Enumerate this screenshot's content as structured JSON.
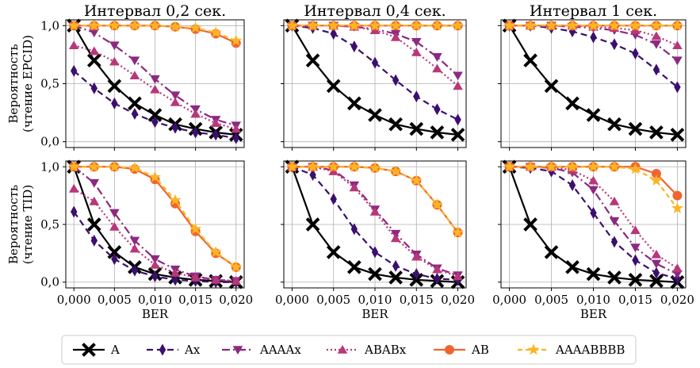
{
  "chart_data": {
    "type": "line",
    "x": [
      0.0,
      0.0025,
      0.005,
      0.0075,
      0.01,
      0.0125,
      0.015,
      0.0175,
      0.02
    ],
    "xticks": [
      "0,000",
      "0,005",
      "0,010",
      "0,015",
      "0,020"
    ],
    "xtick_values": [
      0.0,
      0.005,
      0.01,
      0.015,
      0.02
    ],
    "xlabel": "BER",
    "yticks": [
      "0,0",
      "0,5",
      "1,0"
    ],
    "ytick_values": [
      0,
      0.5,
      1.0
    ],
    "xlim": [
      -0.001,
      0.021
    ],
    "ylim": [
      -0.05,
      1.05
    ],
    "grid": true,
    "legend_position": "bottom",
    "row_ylabels": [
      [
        "Вероятность",
        "(чтение EPCID)"
      ],
      [
        "Вероятность",
        "(чтение TID)"
      ]
    ],
    "series_styles": [
      {
        "name": "A",
        "color": "#000000",
        "marker": "x",
        "dash": ""
      },
      {
        "name": "Ax",
        "color": "#3b0f6f",
        "marker": "d",
        "dash": "8,5"
      },
      {
        "name": "AAAAx",
        "color": "#8c2981",
        "marker": "v",
        "dash": "10,4,2,4"
      },
      {
        "name": "ABABx",
        "color": "#b73779",
        "marker": "^",
        "dash": "2,3"
      },
      {
        "name": "AB",
        "color": "#f0652f",
        "marker": "o",
        "dash": ""
      },
      {
        "name": "AAAABBBB",
        "color": "#fbb524",
        "marker": "*",
        "dash": "6,4"
      }
    ],
    "panels": [
      {
        "title": "Интервал 0,2 сек.",
        "series": [
          {
            "name": "A",
            "values": [
              1.0,
              0.7,
              0.48,
              0.33,
              0.23,
              0.15,
              0.11,
              0.08,
              0.06
            ]
          },
          {
            "name": "Ax",
            "values": [
              0.61,
              0.46,
              0.33,
              0.24,
              0.17,
              0.12,
              0.08,
              0.06,
              0.03
            ]
          },
          {
            "name": "AAAAx",
            "values": [
              1.0,
              0.94,
              0.83,
              0.7,
              0.54,
              0.4,
              0.28,
              0.19,
              0.14
            ]
          },
          {
            "name": "ABABx",
            "values": [
              0.83,
              0.78,
              0.69,
              0.57,
              0.45,
              0.34,
              0.24,
              0.16,
              0.11
            ]
          },
          {
            "name": "AB",
            "values": [
              1.0,
              1.0,
              1.0,
              1.0,
              1.0,
              0.99,
              0.97,
              0.93,
              0.85
            ]
          },
          {
            "name": "AAAABBBB",
            "values": [
              1.0,
              1.0,
              1.0,
              1.0,
              1.0,
              0.99,
              0.98,
              0.94,
              0.87
            ]
          }
        ]
      },
      {
        "title": "Интервал 0,4 сек.",
        "series": [
          {
            "name": "A",
            "values": [
              1.0,
              0.7,
              0.48,
              0.33,
              0.23,
              0.15,
              0.11,
              0.08,
              0.06
            ]
          },
          {
            "name": "Ax",
            "values": [
              1.0,
              0.98,
              0.93,
              0.82,
              0.68,
              0.53,
              0.39,
              0.28,
              0.19
            ]
          },
          {
            "name": "AAAAx",
            "values": [
              1.0,
              1.0,
              1.0,
              0.99,
              0.97,
              0.93,
              0.86,
              0.73,
              0.57
            ]
          },
          {
            "name": "ABABx",
            "values": [
              1.0,
              1.0,
              1.0,
              0.99,
              0.96,
              0.9,
              0.77,
              0.63,
              0.48
            ]
          },
          {
            "name": "AB",
            "values": [
              1.0,
              1.0,
              1.0,
              1.0,
              1.0,
              1.0,
              1.0,
              1.0,
              1.0
            ]
          },
          {
            "name": "AAAABBBB",
            "values": [
              1.0,
              1.0,
              1.0,
              1.0,
              1.0,
              1.0,
              1.0,
              1.0,
              1.0
            ]
          }
        ]
      },
      {
        "title": "Интервал 1 сек.",
        "series": [
          {
            "name": "A",
            "values": [
              1.0,
              0.7,
              0.48,
              0.33,
              0.23,
              0.15,
              0.11,
              0.08,
              0.06
            ]
          },
          {
            "name": "Ax",
            "values": [
              1.0,
              1.0,
              0.98,
              0.95,
              0.9,
              0.84,
              0.76,
              0.62,
              0.47
            ]
          },
          {
            "name": "AAAAx",
            "values": [
              1.0,
              1.0,
              1.0,
              0.99,
              0.98,
              0.96,
              0.92,
              0.84,
              0.7
            ]
          },
          {
            "name": "ABABx",
            "values": [
              1.0,
              1.0,
              1.0,
              1.0,
              0.99,
              0.98,
              0.96,
              0.91,
              0.83
            ]
          },
          {
            "name": "AB",
            "values": [
              1.0,
              1.0,
              1.0,
              1.0,
              1.0,
              1.0,
              1.0,
              1.0,
              1.0
            ]
          },
          {
            "name": "AAAABBBB",
            "values": [
              1.0,
              1.0,
              1.0,
              1.0,
              1.0,
              1.0,
              1.0,
              1.0,
              1.0
            ]
          }
        ]
      },
      {
        "title": "",
        "series": [
          {
            "name": "A",
            "values": [
              1.0,
              0.5,
              0.26,
              0.13,
              0.07,
              0.04,
              0.02,
              0.01,
              0.0
            ]
          },
          {
            "name": "Ax",
            "values": [
              0.61,
              0.36,
              0.2,
              0.1,
              0.05,
              0.02,
              0.01,
              0.0,
              0.0
            ]
          },
          {
            "name": "AAAAx",
            "values": [
              1.0,
              0.86,
              0.6,
              0.36,
              0.2,
              0.11,
              0.05,
              0.02,
              0.01
            ]
          },
          {
            "name": "ABABx",
            "values": [
              0.81,
              0.7,
              0.48,
              0.29,
              0.15,
              0.08,
              0.04,
              0.02,
              0.01
            ]
          },
          {
            "name": "AB",
            "values": [
              1.0,
              1.0,
              1.0,
              0.98,
              0.89,
              0.68,
              0.44,
              0.25,
              0.13
            ]
          },
          {
            "name": "AAAABBBB",
            "values": [
              1.0,
              1.0,
              1.0,
              0.99,
              0.91,
              0.71,
              0.46,
              0.26,
              0.13
            ]
          }
        ]
      },
      {
        "title": "",
        "series": [
          {
            "name": "A",
            "values": [
              1.0,
              0.5,
              0.26,
              0.13,
              0.07,
              0.04,
              0.02,
              0.01,
              0.0
            ]
          },
          {
            "name": "Ax",
            "values": [
              1.0,
              0.93,
              0.72,
              0.46,
              0.26,
              0.14,
              0.07,
              0.03,
              0.02
            ]
          },
          {
            "name": "AAAAx",
            "values": [
              1.0,
              1.0,
              0.97,
              0.84,
              0.63,
              0.42,
              0.24,
              0.12,
              0.06
            ]
          },
          {
            "name": "ABABx",
            "values": [
              1.0,
              1.0,
              0.96,
              0.82,
              0.61,
              0.38,
              0.22,
              0.11,
              0.05
            ]
          },
          {
            "name": "AB",
            "values": [
              1.0,
              1.0,
              1.0,
              1.0,
              0.99,
              0.96,
              0.88,
              0.67,
              0.43
            ]
          },
          {
            "name": "AAAABBBB",
            "values": [
              1.0,
              1.0,
              1.0,
              1.0,
              0.99,
              0.96,
              0.88,
              0.67,
              0.43
            ]
          }
        ]
      },
      {
        "title": "",
        "series": [
          {
            "name": "A",
            "values": [
              1.0,
              0.5,
              0.26,
              0.13,
              0.07,
              0.04,
              0.02,
              0.01,
              0.0
            ]
          },
          {
            "name": "Ax",
            "values": [
              1.0,
              0.99,
              0.96,
              0.84,
              0.6,
              0.35,
              0.19,
              0.08,
              0.03
            ]
          },
          {
            "name": "AAAAx",
            "values": [
              1.0,
              1.0,
              0.99,
              0.95,
              0.8,
              0.53,
              0.3,
              0.16,
              0.07
            ]
          },
          {
            "name": "ABABx",
            "values": [
              1.0,
              1.0,
              1.0,
              0.97,
              0.88,
              0.7,
              0.45,
              0.24,
              0.12
            ]
          },
          {
            "name": "AB",
            "values": [
              1.0,
              1.0,
              1.0,
              1.0,
              1.0,
              1.0,
              1.0,
              0.94,
              0.75
            ]
          },
          {
            "name": "AAAABBBB",
            "values": [
              1.0,
              1.0,
              1.0,
              1.0,
              1.0,
              1.0,
              0.98,
              0.88,
              0.64
            ]
          }
        ]
      }
    ]
  }
}
